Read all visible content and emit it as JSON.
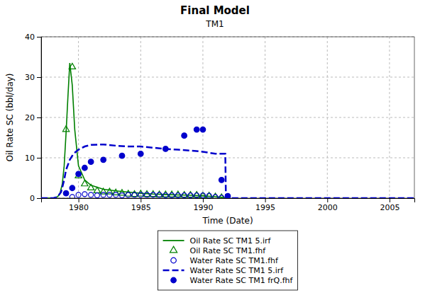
{
  "chart_data": {
    "type": "line",
    "title": "Final Model",
    "subtitle": "TM1",
    "x_label": "Time (Date)",
    "y_label": "Oil Rate SC (bbl/day)",
    "xlim": [
      1977,
      2007
    ],
    "ylim": [
      0,
      40
    ],
    "xticks": [
      1980,
      1985,
      1990,
      1995,
      2000,
      2005
    ],
    "yticks": [
      0,
      10,
      20,
      30,
      40
    ],
    "grid": true,
    "legend": "bottom",
    "series": [
      {
        "name": "Oil Rate SC TM1 5.irf",
        "type": "line",
        "line_style": "solid",
        "color": "#008000",
        "x": [
          1977.0,
          1977.5,
          1978.0,
          1978.3,
          1978.5,
          1978.7,
          1978.85,
          1979.0,
          1979.15,
          1979.3,
          1979.5,
          1979.7,
          1980.0,
          1980.5,
          1981.0,
          1982.0,
          1983.0,
          1984.0,
          1985.0,
          1986.0,
          1987.0,
          1988.0,
          1989.0,
          1990.0,
          1991.0,
          1991.5,
          1992.0
        ],
        "values": [
          0.0,
          0.0,
          0.05,
          0.3,
          1.0,
          3.5,
          8.0,
          16.0,
          25.0,
          33.5,
          28.0,
          17.0,
          8.0,
          4.5,
          3.2,
          2.2,
          1.8,
          1.5,
          1.2,
          1.0,
          0.9,
          0.8,
          0.7,
          0.55,
          0.35,
          0.2,
          0.05
        ]
      },
      {
        "name": "Oil Rate SC TM1.fhf",
        "type": "scatter",
        "marker": "triangle-open",
        "color": "#008000",
        "x": [
          1979.0,
          1979.5,
          1980.0,
          1980.5,
          1981.0,
          1981.5,
          1982.0,
          1982.5,
          1983.0,
          1983.5,
          1984.0,
          1984.5,
          1985.0,
          1985.5,
          1986.0,
          1986.5,
          1987.0,
          1987.5,
          1988.0,
          1988.5,
          1989.0,
          1989.5,
          1990.0,
          1990.5,
          1991.0,
          1991.5
        ],
        "values": [
          17.0,
          32.5,
          5.5,
          3.5,
          2.5,
          1.8,
          1.5,
          1.5,
          1.3,
          1.2,
          1.0,
          0.9,
          1.0,
          0.9,
          0.9,
          0.8,
          0.8,
          0.8,
          0.8,
          0.7,
          0.7,
          0.7,
          0.5,
          0.5,
          0.3,
          0.1
        ]
      },
      {
        "name": "Water Rate SC TM1.fhf",
        "type": "scatter",
        "marker": "circle-open",
        "color": "#0000CC",
        "x": [
          1979.5,
          1980.0,
          1980.5,
          1981.0,
          1981.5,
          1982.0,
          1982.5,
          1983.0,
          1983.5,
          1984.0,
          1984.5,
          1985.0,
          1985.5,
          1986.0,
          1986.5,
          1987.0,
          1987.5,
          1988.0,
          1988.5,
          1989.0,
          1989.5,
          1990.0,
          1990.5,
          1991.0,
          1991.5
        ],
        "values": [
          0.3,
          0.8,
          1.0,
          0.8,
          0.7,
          0.8,
          0.8,
          0.8,
          0.7,
          0.8,
          0.8,
          0.8,
          0.8,
          0.8,
          0.8,
          0.7,
          0.7,
          0.7,
          0.7,
          0.7,
          0.7,
          0.7,
          0.6,
          0.3,
          0.1
        ]
      },
      {
        "name": "Water Rate SC TM1 5.irf",
        "type": "line",
        "line_style": "dashed",
        "color": "#0000CC",
        "x": [
          1977.0,
          1977.5,
          1978.0,
          1978.3,
          1978.6,
          1978.85,
          1979.0,
          1979.3,
          1979.6,
          1980.0,
          1980.5,
          1981.0,
          1982.0,
          1983.0,
          1984.0,
          1985.0,
          1986.0,
          1987.0,
          1988.0,
          1989.0,
          1990.0,
          1991.0,
          1991.8,
          1991.85,
          1992.0,
          2007.0
        ],
        "values": [
          0.0,
          0.0,
          0.0,
          0.3,
          1.5,
          4.5,
          7.0,
          9.5,
          11.0,
          12.0,
          12.8,
          13.2,
          13.3,
          13.0,
          12.8,
          12.8,
          12.5,
          12.2,
          12.0,
          11.8,
          11.5,
          11.0,
          11.0,
          0.3,
          0.0,
          0.0
        ]
      },
      {
        "name": "Water Rate SC TM1 frQ.fhf",
        "type": "scatter",
        "marker": "circle",
        "color": "#0000CC",
        "x": [
          1979.0,
          1979.5,
          1980.0,
          1980.5,
          1981.0,
          1982.0,
          1983.5,
          1985.0,
          1987.0,
          1988.5,
          1989.5,
          1990.0,
          1991.5,
          1992.0
        ],
        "values": [
          1.2,
          2.5,
          6.0,
          7.5,
          9.0,
          9.5,
          10.5,
          11.0,
          12.2,
          15.5,
          17.0,
          17.0,
          4.5,
          0.5
        ]
      }
    ]
  }
}
